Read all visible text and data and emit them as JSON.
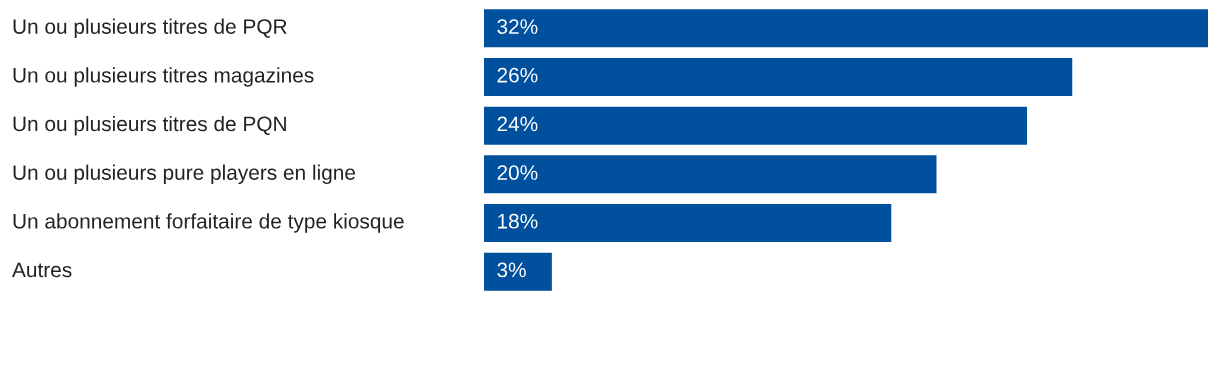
{
  "chart_data": {
    "type": "bar",
    "orientation": "horizontal",
    "categories": [
      "Un ou plusieurs titres de PQR",
      "Un ou plusieurs titres magazines",
      "Un ou plusieurs titres de PQN",
      "Un ou plusieurs pure players en ligne",
      "Un abonnement forfaitaire de type kiosque",
      "Autres"
    ],
    "values": [
      32,
      26,
      24,
      20,
      18,
      3
    ],
    "value_labels": [
      "32%",
      "26%",
      "24%",
      "20%",
      "18%",
      "3%"
    ],
    "color": "#00509e"
  }
}
